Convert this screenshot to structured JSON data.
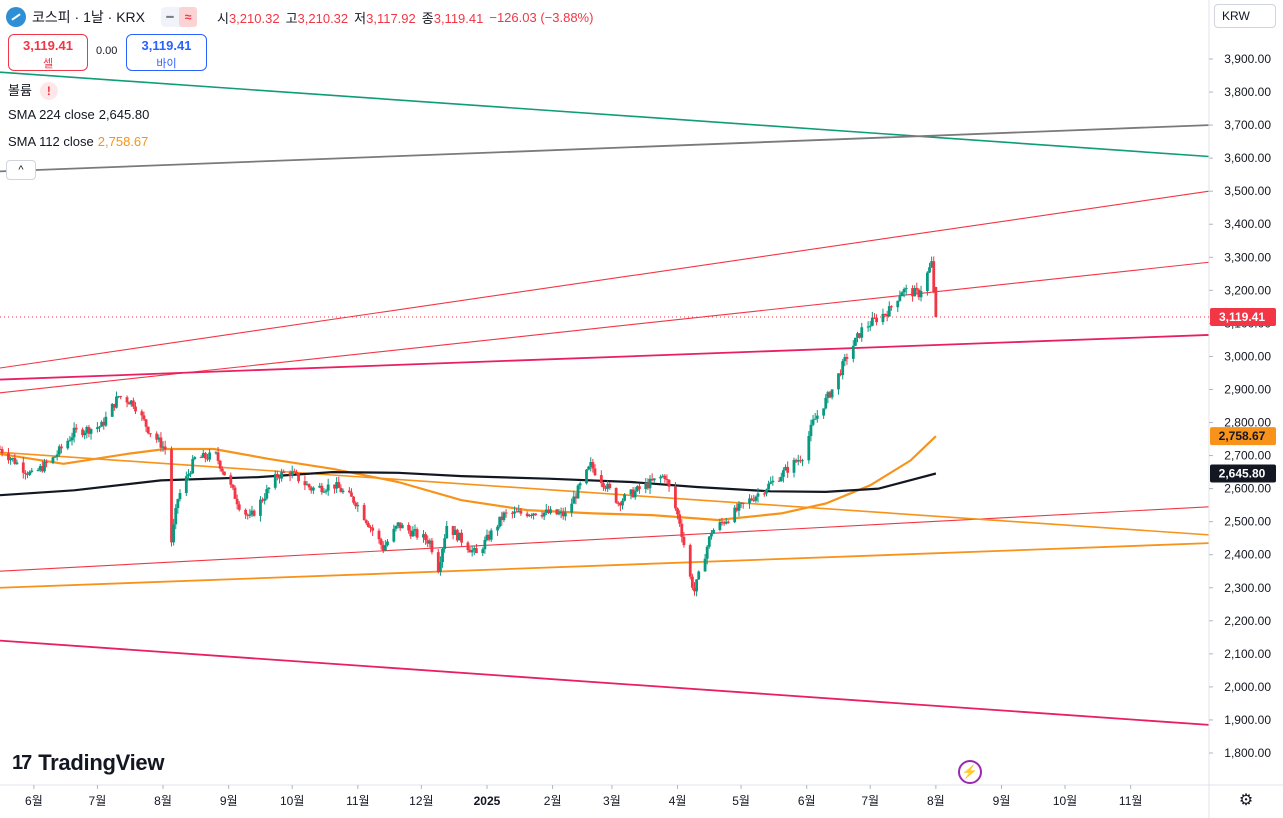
{
  "header": {
    "symbol_title": "코스피 · 1날 · KRX",
    "icons": [
      "chart-symbol-icon",
      "minus-icon",
      "approx-icon"
    ],
    "ohlc": [
      {
        "key": "시",
        "value": "3,210.32"
      },
      {
        "key": "고",
        "value": "3,210.32"
      },
      {
        "key": "저",
        "value": "3,117.92"
      },
      {
        "key": "종",
        "value": "3,119.41"
      }
    ],
    "change": "−126.03 (−3.88%)"
  },
  "trade": {
    "sell_price": "3,119.41",
    "sell_label": "셀",
    "spread": "0.00",
    "buy_price": "3,119.41",
    "buy_label": "바이"
  },
  "indicators": {
    "volume_label": "볼륨",
    "volume_warning": "!",
    "sma224_label": "SMA 224 close",
    "sma224_value": "2,645.80",
    "sma112_label": "SMA 112 close",
    "sma112_value": "2,758.67",
    "collapse_glyph": "^"
  },
  "currency": "KRW",
  "branding": {
    "logo_text": "TradingView",
    "logo_mark": "17"
  },
  "event_icon": "⚡",
  "settings_icon": "⚙",
  "colors": {
    "up": "#089981",
    "down": "#f23645",
    "last_price": "#f23645",
    "sma112": "#f7931a",
    "sma224": "#131722",
    "teal_line": "#0f9d76",
    "gray_line": "#7a7a7a",
    "pink_line": "#e91e63",
    "red_line": "#f23645",
    "orange_line": "#f7931a"
  },
  "chart_data": {
    "type": "candlestick",
    "title": "코스피 · 1날 · KRX",
    "price_axis": {
      "ticks": [
        1800,
        1900,
        2000,
        2100,
        2200,
        2300,
        2400,
        2500,
        2600,
        2700,
        2800,
        2900,
        3000,
        3100,
        3200,
        3300,
        3400,
        3500,
        3600,
        3700,
        3800,
        3900
      ],
      "tick_labels": [
        "1,800.00",
        "1,900.00",
        "2,000.00",
        "2,100.00",
        "2,200.00",
        "2,300.00",
        "2,400.00",
        "2,500.00",
        "2,600.00",
        "2,700.00",
        "2,800.00",
        "2,900.00",
        "3,000.00",
        "3,100.00",
        "3,200.00",
        "3,300.00",
        "3,400.00",
        "3,500.00",
        "3,600.00",
        "3,700.00",
        "3,800.00",
        "3,900.00"
      ],
      "range": [
        1700,
        4000
      ]
    },
    "time_axis": {
      "range": [
        "2024-05-16",
        "2025-12-08"
      ],
      "ticks": [
        {
          "label": "6월",
          "date": "2024-06-01"
        },
        {
          "label": "7월",
          "date": "2024-07-01"
        },
        {
          "label": "8월",
          "date": "2024-08-01"
        },
        {
          "label": "9월",
          "date": "2024-09-01"
        },
        {
          "label": "10월",
          "date": "2024-10-01"
        },
        {
          "label": "11월",
          "date": "2024-11-01"
        },
        {
          "label": "12월",
          "date": "2024-12-01"
        },
        {
          "label": "2025",
          "date": "2025-01-01",
          "bold": true
        },
        {
          "label": "2월",
          "date": "2025-02-01"
        },
        {
          "label": "3월",
          "date": "2025-03-01"
        },
        {
          "label": "4월",
          "date": "2025-04-01"
        },
        {
          "label": "5월",
          "date": "2025-05-01"
        },
        {
          "label": "6월",
          "date": "2025-06-01"
        },
        {
          "label": "7월",
          "date": "2025-07-01"
        },
        {
          "label": "8월",
          "date": "2025-08-01"
        },
        {
          "label": "9월",
          "date": "2025-09-01"
        },
        {
          "label": "10월",
          "date": "2025-10-01"
        },
        {
          "label": "11월",
          "date": "2025-11-01"
        }
      ]
    },
    "price_path": [
      [
        "2024-05-16",
        2720
      ],
      [
        "2024-05-31",
        2640
      ],
      [
        "2024-06-10",
        2690
      ],
      [
        "2024-06-20",
        2770
      ],
      [
        "2024-07-03",
        2790
      ],
      [
        "2024-07-11",
        2880
      ],
      [
        "2024-07-18",
        2860
      ],
      [
        "2024-07-25",
        2780
      ],
      [
        "2024-08-02",
        2720
      ],
      [
        "2024-08-05",
        2440
      ],
      [
        "2024-08-08",
        2570
      ],
      [
        "2024-08-16",
        2690
      ],
      [
        "2024-08-26",
        2700
      ],
      [
        "2024-09-06",
        2550
      ],
      [
        "2024-09-11",
        2510
      ],
      [
        "2024-09-24",
        2640
      ],
      [
        "2024-09-30",
        2650
      ],
      [
        "2024-10-10",
        2600
      ],
      [
        "2024-10-21",
        2610
      ],
      [
        "2024-10-31",
        2560
      ],
      [
        "2024-11-13",
        2420
      ],
      [
        "2024-11-20",
        2490
      ],
      [
        "2024-12-05",
        2440
      ],
      [
        "2024-12-09",
        2360
      ],
      [
        "2024-12-13",
        2490
      ],
      [
        "2024-12-27",
        2400
      ],
      [
        "2025-01-09",
        2520
      ],
      [
        "2025-01-24",
        2530
      ],
      [
        "2025-02-07",
        2520
      ],
      [
        "2025-02-19",
        2670
      ],
      [
        "2025-03-04",
        2560
      ],
      [
        "2025-03-17",
        2610
      ],
      [
        "2025-03-26",
        2640
      ],
      [
        "2025-04-02",
        2500
      ],
      [
        "2025-04-07",
        2330
      ],
      [
        "2025-04-09",
        2290
      ],
      [
        "2025-04-17",
        2470
      ],
      [
        "2025-05-02",
        2550
      ],
      [
        "2025-05-16",
        2620
      ],
      [
        "2025-05-30",
        2700
      ],
      [
        "2025-06-04",
        2800
      ],
      [
        "2025-06-13",
        2900
      ],
      [
        "2025-06-20",
        3000
      ],
      [
        "2025-06-27",
        3080
      ],
      [
        "2025-07-03",
        3110
      ],
      [
        "2025-07-10",
        3140
      ],
      [
        "2025-07-16",
        3200
      ],
      [
        "2025-07-24",
        3190
      ],
      [
        "2025-07-30",
        3280
      ],
      [
        "2025-08-01",
        3119
      ]
    ],
    "last_close": 3119.41,
    "last_close_label": "3,119.41",
    "series": [
      {
        "name": "SMA 112 close",
        "values": [
          [
            "2024-05-16",
            2705
          ],
          [
            "2024-06-15",
            2675
          ],
          [
            "2024-07-15",
            2705
          ],
          [
            "2024-08-02",
            2720
          ],
          [
            "2024-08-25",
            2720
          ],
          [
            "2024-09-20",
            2690
          ],
          [
            "2024-10-20",
            2660
          ],
          [
            "2024-11-20",
            2620
          ],
          [
            "2024-12-20",
            2565
          ],
          [
            "2025-01-20",
            2535
          ],
          [
            "2025-02-20",
            2525
          ],
          [
            "2025-03-20",
            2520
          ],
          [
            "2025-04-20",
            2505
          ],
          [
            "2025-05-20",
            2525
          ],
          [
            "2025-06-10",
            2555
          ],
          [
            "2025-07-01",
            2610
          ],
          [
            "2025-07-20",
            2685
          ],
          [
            "2025-08-01",
            2758.67
          ]
        ],
        "value_label": "2,758.67"
      },
      {
        "name": "SMA 224 close",
        "values": [
          [
            "2024-05-16",
            2580
          ],
          [
            "2024-06-20",
            2595
          ],
          [
            "2024-07-31",
            2625
          ],
          [
            "2024-09-15",
            2635
          ],
          [
            "2024-10-20",
            2650
          ],
          [
            "2024-11-20",
            2648
          ],
          [
            "2024-12-20",
            2638
          ],
          [
            "2025-01-30",
            2630
          ],
          [
            "2025-03-10",
            2620
          ],
          [
            "2025-04-10",
            2605
          ],
          [
            "2025-05-15",
            2592
          ],
          [
            "2025-06-10",
            2590
          ],
          [
            "2025-07-05",
            2600
          ],
          [
            "2025-08-01",
            2645.8
          ]
        ],
        "value_label": "2,645.80"
      }
    ],
    "trendlines": [
      {
        "name": "teal",
        "from": [
          "2024-05-16",
          3860
        ],
        "to": [
          "2025-12-08",
          3605
        ]
      },
      {
        "name": "gray",
        "from": [
          "2024-05-16",
          3560
        ],
        "to": [
          "2025-12-08",
          3700
        ]
      },
      {
        "name": "red-upper",
        "from": [
          "2024-05-16",
          2965
        ],
        "to": [
          "2025-12-08",
          3500
        ]
      },
      {
        "name": "red-middle",
        "from": [
          "2024-05-16",
          2890
        ],
        "to": [
          "2025-12-08",
          3285
        ]
      },
      {
        "name": "pink-support",
        "from": [
          "2024-05-16",
          2930
        ],
        "to": [
          "2025-12-08",
          3065
        ]
      },
      {
        "name": "red-lower",
        "from": [
          "2024-05-16",
          2350
        ],
        "to": [
          "2025-12-08",
          2545
        ]
      },
      {
        "name": "orange-upper",
        "from": [
          "2024-05-16",
          2710
        ],
        "to": [
          "2025-12-08",
          2460
        ]
      },
      {
        "name": "orange-lower",
        "from": [
          "2024-05-16",
          2300
        ],
        "to": [
          "2025-12-08",
          2435
        ]
      },
      {
        "name": "pink-bottom",
        "from": [
          "2024-05-16",
          2140
        ],
        "to": [
          "2025-12-08",
          1885
        ]
      }
    ],
    "grid": false,
    "legend_placement": "top-left"
  }
}
